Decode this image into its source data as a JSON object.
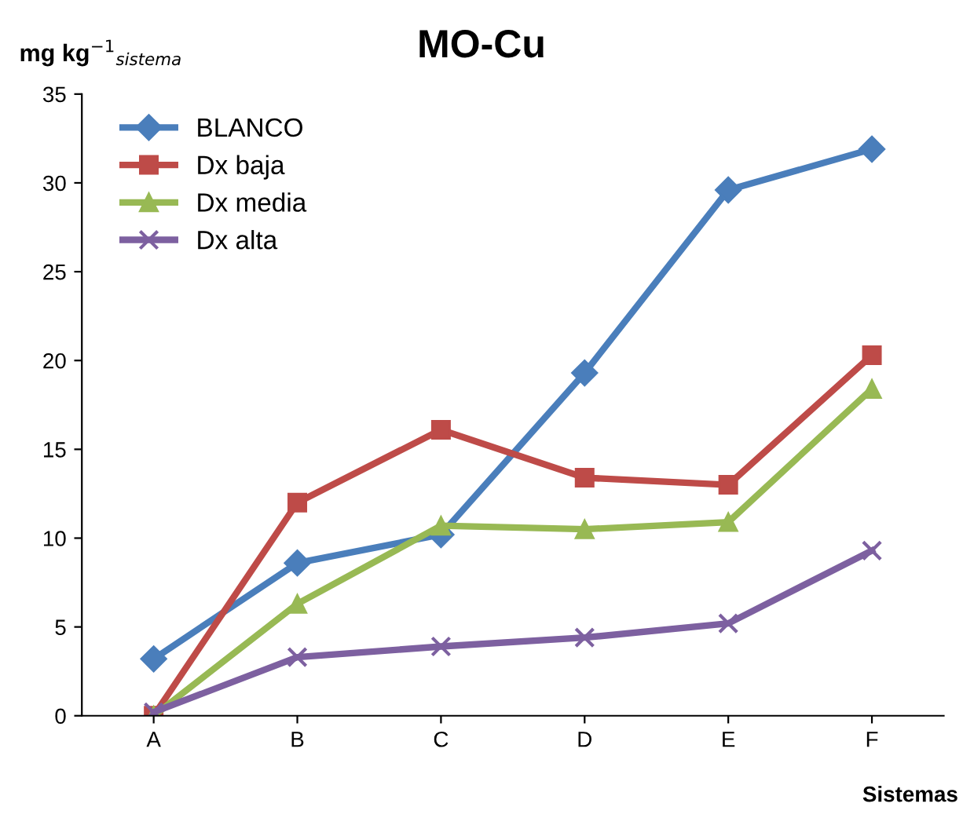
{
  "chart_data": {
    "type": "line",
    "title": "MO-Cu",
    "ylabel": "mg kg$^{−1}$$_{sistema}$",
    "xlabel": "Sistemas",
    "categories": [
      "A",
      "B",
      "C",
      "D",
      "E",
      "F"
    ],
    "series": [
      {
        "name": "BLANCO",
        "color": "#4a7ebb",
        "marker": "diamond",
        "values": [
          3.2,
          8.6,
          10.2,
          19.3,
          29.6,
          31.9
        ]
      },
      {
        "name": "Dx baja",
        "color": "#be4b48",
        "marker": "square",
        "values": [
          0,
          12.0,
          16.1,
          13.4,
          13.0,
          20.3
        ]
      },
      {
        "name": "Dx media",
        "color": "#98b954",
        "marker": "triangle",
        "values": [
          0,
          6.3,
          10.7,
          10.5,
          10.9,
          18.4
        ]
      },
      {
        "name": "Dx alta",
        "color": "#7d60a0",
        "marker": "cross",
        "values": [
          0.2,
          3.3,
          3.9,
          4.4,
          5.2,
          9.3
        ]
      }
    ],
    "ylim": [
      0,
      35
    ],
    "yticks": [
      0,
      5,
      10,
      15,
      20,
      25,
      30,
      35
    ],
    "grid": false,
    "legend": "top left"
  }
}
